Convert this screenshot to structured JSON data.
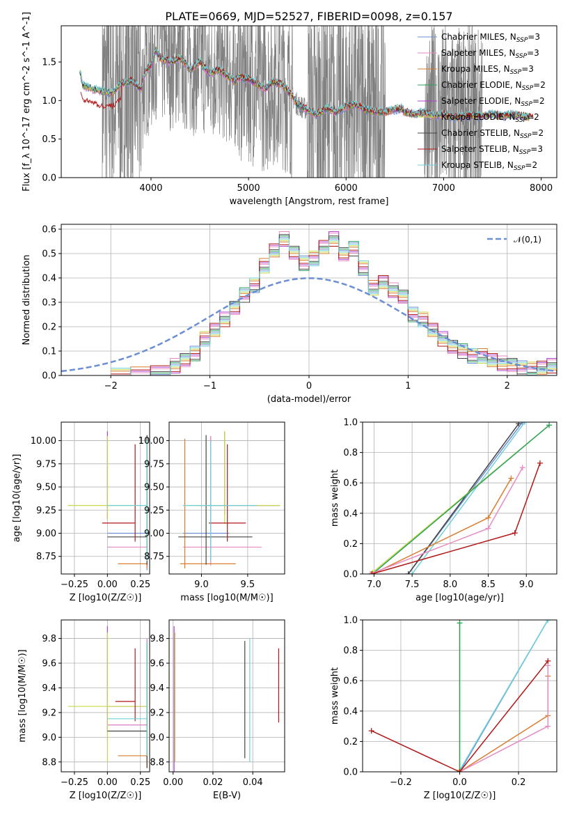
{
  "page": {
    "title": "PLATE=0669, MJD=52527, FIBERID=0098, z=0.157"
  },
  "series": [
    {
      "name": "Chabrier MILES",
      "n": "3",
      "color": "#6c8ed4"
    },
    {
      "name": "Salpeter MILES",
      "n": "3",
      "color": "#e78ac3"
    },
    {
      "name": "Kroupa MILES",
      "n": "3",
      "color": "#d87c2e"
    },
    {
      "name": "Chabrier ELODIE",
      "n": "2",
      "color": "#2ca25f"
    },
    {
      "name": "Salpeter ELODIE",
      "n": "2",
      "color": "#b040d0"
    },
    {
      "name": "Kroupa ELODIE",
      "n": "2",
      "color": "#c8d84a"
    },
    {
      "name": "Chabrier STELIB",
      "n": "2",
      "color": "#444444"
    },
    {
      "name": "Salpeter STELIB",
      "n": "3",
      "color": "#b01818"
    },
    {
      "name": "Kroupa STELIB",
      "n": "2",
      "color": "#70d0d8"
    }
  ],
  "chart_data": [
    {
      "id": "spectrum",
      "type": "line",
      "xlabel": "wavelength [Angstrom, rest frame]",
      "ylabel": "Flux [f_λ 10^-17 erg cm^-2 s^-1 A^-1]",
      "xlim": [
        3080,
        8160
      ],
      "ylim": [
        0,
        1.97
      ],
      "xticks": [
        4000,
        5000,
        6000,
        7000,
        8000
      ],
      "yticks": [
        0.0,
        0.5,
        1.0,
        1.5
      ],
      "legend": "right",
      "data_color": "#808080",
      "model": {
        "x": [
          3270,
          3300,
          3400,
          3500,
          3600,
          3700,
          3800,
          3900,
          3950,
          4000,
          4050,
          4100,
          4200,
          4300,
          4400,
          4500,
          4600,
          4700,
          4800,
          4861,
          4900,
          5000,
          5100,
          5175,
          5250,
          5350,
          5450,
          5500,
          5600,
          5700,
          5800,
          5893,
          6000,
          6100,
          6200,
          6300,
          6400,
          6500,
          6563,
          6600,
          6700,
          6800,
          6900,
          7000,
          7100,
          7200,
          7300,
          7400,
          7500,
          7600,
          7700,
          7800,
          7900
        ],
        "y": [
          1.4,
          1.2,
          1.15,
          1.12,
          1.1,
          1.22,
          1.25,
          1.15,
          1.4,
          1.45,
          1.65,
          1.55,
          1.5,
          1.55,
          1.4,
          1.5,
          1.35,
          1.4,
          1.3,
          1.25,
          1.3,
          1.28,
          1.2,
          1.15,
          1.25,
          1.2,
          1.05,
          0.95,
          0.88,
          0.82,
          0.9,
          0.85,
          0.92,
          0.95,
          0.88,
          0.85,
          0.85,
          0.88,
          0.9,
          0.85,
          0.82,
          0.85,
          0.8,
          0.82,
          0.78,
          0.8,
          0.8,
          0.8,
          0.82,
          0.8,
          0.82,
          0.8,
          0.78
        ]
      }
    },
    {
      "id": "residuals",
      "type": "step",
      "xlabel": "(data-model)/error",
      "ylabel": "Normed distribution",
      "xlim": [
        -2.5,
        2.5
      ],
      "ylim": [
        0,
        0.62
      ],
      "xticks": [
        -2,
        -1,
        0,
        1,
        2
      ],
      "yticks": [
        0.0,
        0.1,
        0.2,
        0.3,
        0.4,
        0.5,
        0.6
      ],
      "legend_label": "𝒩(0,1)",
      "legend": "upper right",
      "gaussian_color": "#6c8ed4",
      "bin_edges": [
        -2.0,
        -1.8,
        -1.6,
        -1.4,
        -1.3,
        -1.2,
        -1.1,
        -1.0,
        -0.9,
        -0.8,
        -0.7,
        -0.6,
        -0.5,
        -0.4,
        -0.3,
        -0.2,
        -0.1,
        0.0,
        0.1,
        0.2,
        0.3,
        0.4,
        0.5,
        0.6,
        0.7,
        0.8,
        0.9,
        1.0,
        1.1,
        1.2,
        1.3,
        1.4,
        1.5,
        1.6,
        1.7,
        1.8,
        1.9,
        2.0,
        2.1,
        2.2,
        2.3,
        2.4,
        2.5
      ],
      "hist_values": [
        0.0,
        0.005,
        0.01,
        0.04,
        0.06,
        0.09,
        0.15,
        0.19,
        0.23,
        0.28,
        0.33,
        0.37,
        0.45,
        0.51,
        0.56,
        0.5,
        0.46,
        0.48,
        0.53,
        0.56,
        0.5,
        0.52,
        0.44,
        0.36,
        0.38,
        0.35,
        0.32,
        0.25,
        0.23,
        0.19,
        0.15,
        0.12,
        0.1,
        0.08,
        0.08,
        0.06,
        0.05,
        0.04,
        0.03,
        0.025,
        0.035,
        0.04
      ]
    },
    {
      "id": "age-vs-z",
      "type": "errorbar",
      "xlabel": "Z [log10(Z/Z☉)]",
      "ylabel": "age  [log10(age/yr)]",
      "xlim": [
        -0.35,
        0.32
      ],
      "ylim": [
        8.56,
        10.2
      ],
      "xticks": [
        -0.25,
        0.0,
        0.25
      ],
      "xtick_labels": [
        "−0.25",
        "0.00",
        "0.25"
      ],
      "yticks": [
        8.75,
        9.0,
        9.25,
        9.5,
        9.75,
        10.0
      ],
      "ytick_labels": [
        "8.75",
        "9.00",
        "9.25",
        "9.50",
        "9.75",
        "10.00"
      ],
      "points": [
        {
          "s": 0,
          "x": 0.3,
          "y": 9.0,
          "xerr": [
            0.3,
            0.0
          ],
          "yerr": [
            0.4,
            1.0
          ]
        },
        {
          "s": 1,
          "x": 0.3,
          "y": 8.85,
          "xerr": [
            0.3,
            0.0
          ],
          "yerr": [
            0.1,
            1.2
          ]
        },
        {
          "s": 2,
          "x": 0.3,
          "y": 8.67,
          "xerr": [
            0.22,
            0.0
          ],
          "yerr": [
            0.05,
            1.3
          ]
        },
        {
          "s": 4,
          "x": 0.0,
          "y": 9.3,
          "xerr": [
            0.0,
            0.0
          ],
          "yerr": [
            0.15,
            0.8
          ]
        },
        {
          "s": 5,
          "x": 0.0,
          "y": 9.3,
          "xerr": [
            0.3,
            0.3
          ],
          "yerr": [
            0.15,
            0.75
          ]
        },
        {
          "s": 6,
          "x": 0.3,
          "y": 8.96,
          "xerr": [
            0.3,
            0.0
          ],
          "yerr": [
            0.3,
            1.1
          ]
        },
        {
          "s": 7,
          "x": 0.21,
          "y": 9.11,
          "xerr": [
            0.25,
            0.0
          ],
          "yerr": [
            0.2,
            0.85
          ]
        },
        {
          "s": 8,
          "x": 0.3,
          "y": 9.3,
          "xerr": [
            0.3,
            0.0
          ],
          "yerr": [
            0.6,
            0.7
          ]
        }
      ]
    },
    {
      "id": "age-vs-mass",
      "type": "errorbar",
      "xlabel": "mass [log10(M/M☉)]",
      "ylabel": "",
      "xlim": [
        8.65,
        9.9
      ],
      "ylim": [
        8.56,
        10.2
      ],
      "xticks": [
        9.0,
        9.5
      ],
      "xtick_labels": [
        "9.0",
        "9.5"
      ],
      "yticks": [
        8.75,
        9.0,
        9.25,
        9.5,
        9.75,
        10.0
      ],
      "ytick_labels": [
        "8.75",
        "9.00",
        "9.25",
        "9.50",
        "9.75",
        "10.00"
      ],
      "points": [
        {
          "s": 0,
          "x": 9.1,
          "y": 9.0,
          "xerr": [
            0.3,
            0.2
          ],
          "yerr": [
            0.3,
            1.05
          ]
        },
        {
          "s": 1,
          "x": 9.1,
          "y": 8.85,
          "xerr": [
            0.3,
            0.55
          ],
          "yerr": [
            0.2,
            1.2
          ]
        },
        {
          "s": 2,
          "x": 8.82,
          "y": 8.67,
          "xerr": [
            0.05,
            0.55
          ],
          "yerr": [
            0.05,
            1.35
          ]
        },
        {
          "s": 4,
          "x": 9.25,
          "y": 9.3,
          "xerr": [
            0.3,
            0.6
          ],
          "yerr": [
            0.1,
            0.8
          ]
        },
        {
          "s": 5,
          "x": 9.25,
          "y": 9.3,
          "xerr": [
            0.4,
            0.6
          ],
          "yerr": [
            0.2,
            0.8
          ]
        },
        {
          "s": 6,
          "x": 9.05,
          "y": 8.96,
          "xerr": [
            0.3,
            0.5
          ],
          "yerr": [
            0.3,
            1.1
          ]
        },
        {
          "s": 7,
          "x": 9.28,
          "y": 9.11,
          "xerr": [
            0.2,
            0.2
          ],
          "yerr": [
            0.2,
            0.85
          ]
        },
        {
          "s": 8,
          "x": 9.1,
          "y": 9.3,
          "xerr": [
            0.3,
            0.5
          ],
          "yerr": [
            0.6,
            0.7
          ]
        }
      ]
    },
    {
      "id": "mass-weight-vs-age",
      "type": "line",
      "xlabel": "age  [log10(age/yr)]",
      "ylabel": "mass weight",
      "xlim": [
        6.85,
        9.4
      ],
      "ylim": [
        0,
        1.0
      ],
      "xticks": [
        7.0,
        7.5,
        8.0,
        8.5,
        9.0
      ],
      "xtick_labels": [
        "7.0",
        "7.5",
        "8.0",
        "8.5",
        "9.0"
      ],
      "yticks": [
        0.0,
        0.2,
        0.4,
        0.6,
        0.8,
        1.0
      ],
      "ytick_labels": [
        "0.0",
        "0.2",
        "0.4",
        "0.6",
        "0.8",
        "1.0"
      ],
      "lines": [
        {
          "s": 0,
          "x": [
            7.45,
            8.95
          ],
          "y": [
            0.0,
            1.0
          ]
        },
        {
          "s": 8,
          "x": [
            7.5,
            8.98
          ],
          "y": [
            0.0,
            1.0
          ]
        },
        {
          "s": 6,
          "x": [
            7.45,
            8.9
          ],
          "y": [
            0.0,
            0.99
          ]
        },
        {
          "s": 5,
          "x": [
            6.98,
            9.3
          ],
          "y": [
            0.01,
            0.98
          ]
        },
        {
          "s": 3,
          "x": [
            6.98,
            9.3
          ],
          "y": [
            0.0,
            0.98
          ]
        },
        {
          "s": 2,
          "x": [
            6.98,
            8.5,
            8.8
          ],
          "y": [
            0.0,
            0.37,
            0.63
          ]
        },
        {
          "s": 1,
          "x": [
            6.95,
            8.5,
            8.95
          ],
          "y": [
            0.0,
            0.3,
            0.7
          ]
        },
        {
          "s": 7,
          "x": [
            6.97,
            8.85,
            9.18
          ],
          "y": [
            0.0,
            0.27,
            0.73
          ]
        }
      ]
    },
    {
      "id": "mass-vs-z",
      "type": "errorbar",
      "xlabel": "Z [log10(Z/Z☉)]",
      "ylabel": "mass [log10(M/M☉)]",
      "xlim": [
        -0.35,
        0.32
      ],
      "ylim": [
        8.72,
        9.95
      ],
      "xticks": [
        -0.25,
        0.0,
        0.25
      ],
      "xtick_labels": [
        "−0.25",
        "0.00",
        "0.25"
      ],
      "yticks": [
        8.8,
        9.0,
        9.2,
        9.4,
        9.6,
        9.8
      ],
      "ytick_labels": [
        "8.8",
        "9.0",
        "9.2",
        "9.4",
        "9.6",
        "9.8"
      ],
      "points": [
        {
          "s": 0,
          "x": 0.3,
          "y": 9.1,
          "xerr": [
            0.3,
            0.0
          ],
          "yerr": [
            0.3,
            0.7
          ]
        },
        {
          "s": 1,
          "x": 0.3,
          "y": 9.1,
          "xerr": [
            0.3,
            0.0
          ],
          "yerr": [
            0.3,
            0.7
          ]
        },
        {
          "s": 2,
          "x": 0.3,
          "y": 8.85,
          "xerr": [
            0.22,
            0.0
          ],
          "yerr": [
            0.1,
            0.9
          ]
        },
        {
          "s": 4,
          "x": 0.0,
          "y": 9.25,
          "xerr": [
            0.0,
            0.3
          ],
          "yerr": [
            0.2,
            0.65
          ]
        },
        {
          "s": 5,
          "x": 0.0,
          "y": 9.25,
          "xerr": [
            0.3,
            0.3
          ],
          "yerr": [
            0.45,
            0.6
          ]
        },
        {
          "s": 6,
          "x": 0.3,
          "y": 9.05,
          "xerr": [
            0.3,
            0.0
          ],
          "yerr": [
            0.3,
            0.72
          ]
        },
        {
          "s": 7,
          "x": 0.21,
          "y": 9.29,
          "xerr": [
            0.15,
            0.0
          ],
          "yerr": [
            0.16,
            0.43
          ]
        },
        {
          "s": 8,
          "x": 0.3,
          "y": 9.15,
          "xerr": [
            0.3,
            0.0
          ],
          "yerr": [
            0.3,
            0.62
          ]
        }
      ]
    },
    {
      "id": "mass-vs-ebv",
      "type": "errorbar",
      "xlabel": "E(B-V)",
      "ylabel": "",
      "xlim": [
        -0.002,
        0.056
      ],
      "ylim": [
        8.72,
        9.95
      ],
      "xticks": [
        0.0,
        0.02,
        0.04
      ],
      "xtick_labels": [
        "0.00",
        "0.02",
        "0.04"
      ],
      "yticks": [
        8.8,
        9.0,
        9.2,
        9.4,
        9.6,
        9.8
      ],
      "ytick_labels": [
        "8.8",
        "9.0",
        "9.2",
        "9.4",
        "9.6",
        "9.8"
      ],
      "points": [
        {
          "s": 4,
          "x": 0.0005,
          "y": 9.25,
          "xerr": [
            0,
            0
          ],
          "yerr": [
            0.55,
            0.65
          ]
        },
        {
          "s": 5,
          "x": 0.001,
          "y": 9.25,
          "xerr": [
            0,
            0
          ],
          "yerr": [
            0.45,
            0.6
          ]
        },
        {
          "s": 6,
          "x": 0.036,
          "y": 9.3,
          "xerr": [
            0,
            0
          ],
          "yerr": [
            0.47,
            0.48
          ]
        },
        {
          "s": 8,
          "x": 0.0385,
          "y": 9.3,
          "xerr": [
            0,
            0
          ],
          "yerr": [
            0.5,
            0.5
          ]
        },
        {
          "s": 7,
          "x": 0.053,
          "y": 9.42,
          "xerr": [
            0,
            0
          ],
          "yerr": [
            0.3,
            0.3
          ]
        }
      ]
    },
    {
      "id": "mass-weight-vs-z",
      "type": "line",
      "xlabel": "Z [log10(Z/Z☉)]",
      "ylabel": "mass weight",
      "xlim": [
        -0.33,
        0.33
      ],
      "ylim": [
        0,
        1.0
      ],
      "xticks": [
        -0.2,
        0.0,
        0.2
      ],
      "xtick_labels": [
        "−0.2",
        "0.0",
        "0.2"
      ],
      "yticks": [
        0.0,
        0.2,
        0.4,
        0.6,
        0.8,
        1.0
      ],
      "ytick_labels": [
        "0.0",
        "0.2",
        "0.4",
        "0.6",
        "0.8",
        "1.0"
      ],
      "lines": [
        {
          "s": 0,
          "x": [
            0.0,
            0.3
          ],
          "y": [
            0.0,
            1.0
          ]
        },
        {
          "s": 8,
          "x": [
            0.0,
            0.3
          ],
          "y": [
            0.01,
            1.0
          ]
        },
        {
          "s": 5,
          "x": [
            0.0,
            0.0
          ],
          "y": [
            0.01,
            0.98
          ]
        },
        {
          "s": 3,
          "x": [
            0.0,
            0.0
          ],
          "y": [
            0.0,
            0.98
          ]
        },
        {
          "s": 2,
          "x": [
            0.0,
            0.3,
            0.3
          ],
          "y": [
            0.0,
            0.37,
            0.63
          ]
        },
        {
          "s": 1,
          "x": [
            0.0,
            0.3,
            0.3
          ],
          "y": [
            0.0,
            0.3,
            0.7
          ]
        },
        {
          "s": 7,
          "x": [
            -0.3,
            0.0,
            0.3
          ],
          "y": [
            0.27,
            0.0,
            0.73
          ]
        }
      ]
    }
  ]
}
